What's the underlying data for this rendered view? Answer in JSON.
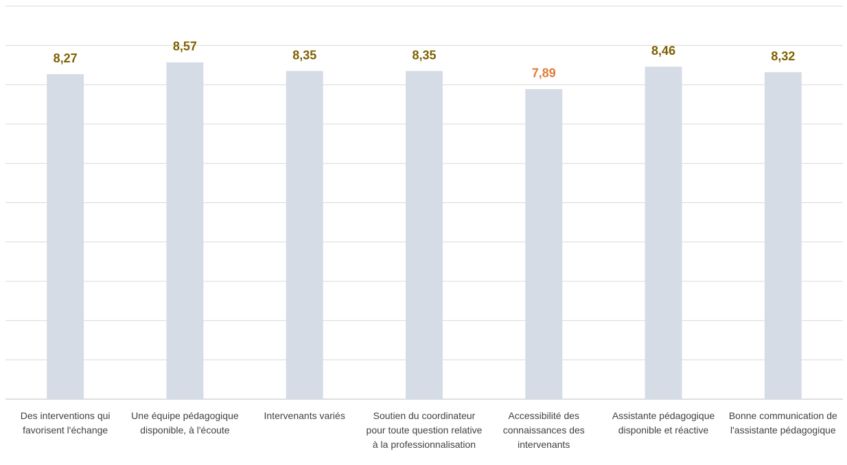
{
  "chart_data": {
    "type": "bar",
    "categories": [
      "Des interventions qui favorisent l'échange",
      "Une équipe pédagogique disponible, à l'écoute",
      "Intervenants variés",
      "Soutien du coordinateur pour toute question relative à la professionnalisation",
      "Accessibilité des connaissances des intervenants",
      "Assistante pédagogique disponible et réactive",
      "Bonne communication de l'assistante pédagogique"
    ],
    "values": [
      8.27,
      8.57,
      8.35,
      8.35,
      7.89,
      8.46,
      8.32
    ],
    "value_labels": [
      "8,27",
      "8,57",
      "8,35",
      "8,35",
      "7,89",
      "8,46",
      "8,32"
    ],
    "color": "#d6dce5",
    "label_colors": [
      "#7f6000",
      "#7f6000",
      "#7f6000",
      "#7f6000",
      "#e07b39",
      "#7f6000",
      "#7f6000"
    ],
    "ylim": [
      0,
      10
    ],
    "yticks": [
      0,
      1,
      2,
      3,
      4,
      5,
      6,
      7,
      8,
      9,
      10
    ],
    "grid": true
  }
}
